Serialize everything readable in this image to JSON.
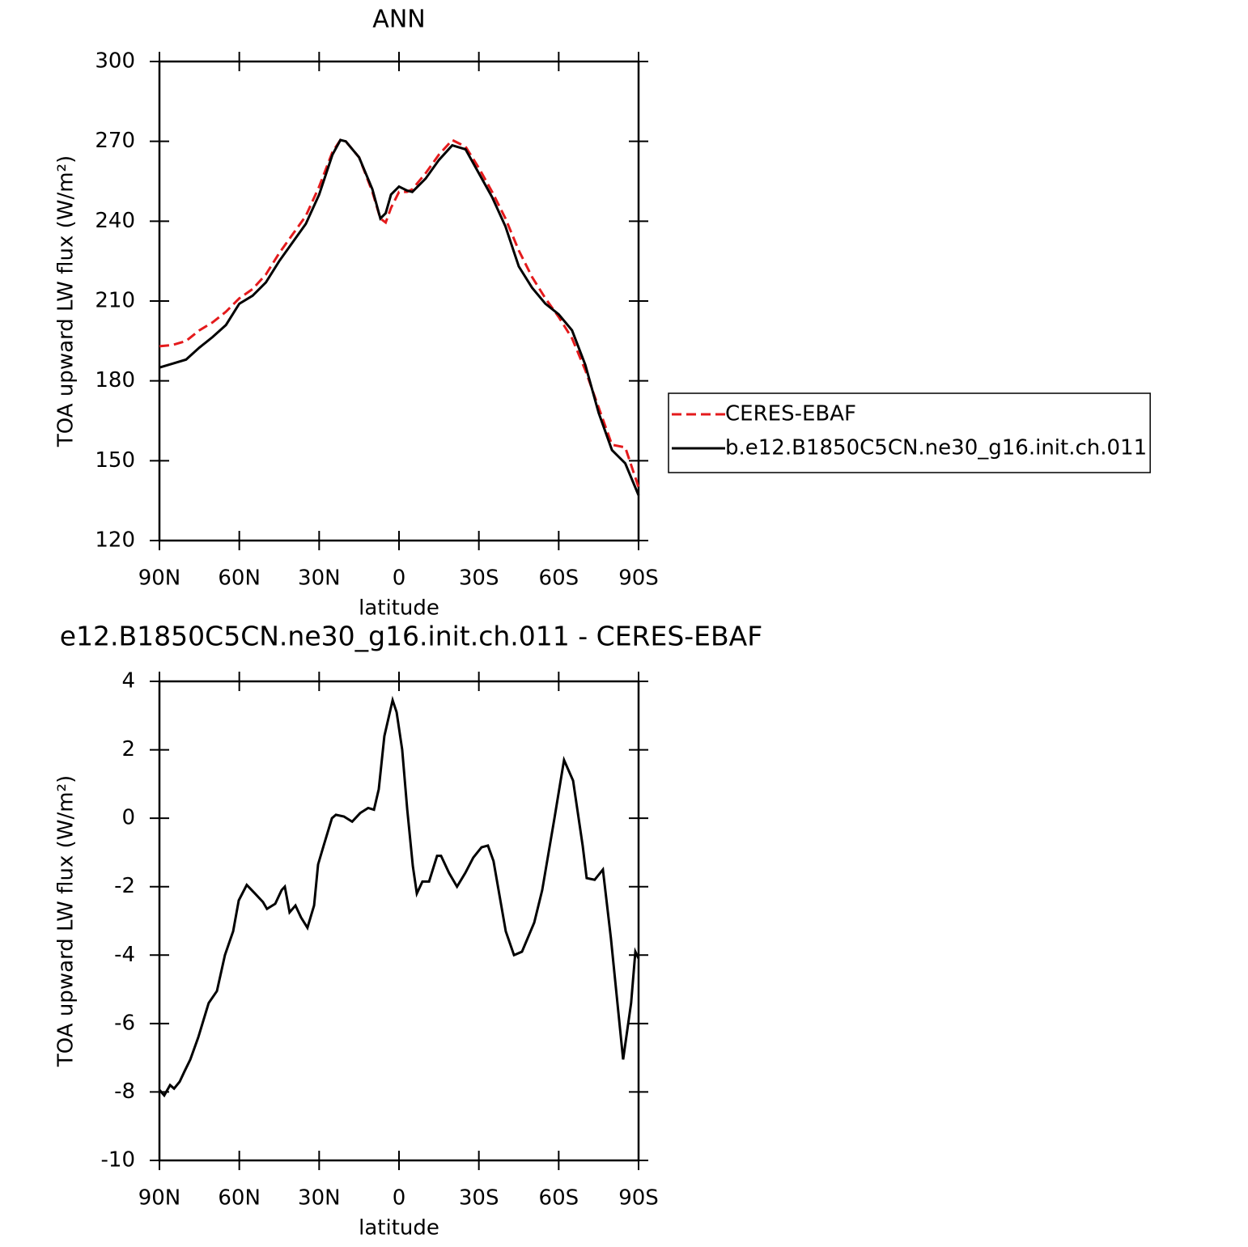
{
  "chart_data": [
    {
      "type": "line",
      "title": "ANN",
      "xlabel": "latitude",
      "ylabel": "TOA upward LW flux (W/m²)",
      "xlim": [
        90,
        -90
      ],
      "xticks": [
        {
          "value": 90,
          "label": "90N"
        },
        {
          "value": 60,
          "label": "60N"
        },
        {
          "value": 30,
          "label": "30N"
        },
        0,
        {
          "value": -30,
          "label": "30S"
        },
        {
          "value": -60,
          "label": "60S"
        },
        {
          "value": -90,
          "label": "90S"
        }
      ],
      "ylim": [
        120,
        300
      ],
      "yticks": [
        120,
        150,
        180,
        210,
        240,
        270,
        300
      ],
      "legend": "right",
      "x": [
        90,
        85,
        80,
        75,
        70,
        65,
        60,
        55,
        50,
        45,
        40,
        35,
        30,
        25,
        22,
        20,
        15,
        10,
        7,
        5,
        3,
        0,
        -3,
        -5,
        -10,
        -15,
        -20,
        -25,
        -30,
        -35,
        -40,
        -45,
        -50,
        -55,
        -60,
        -65,
        -70,
        -75,
        -80,
        -85,
        -90
      ],
      "series": [
        {
          "name": "CERES-EBAF",
          "color": "#e41a1c",
          "style": "dashed",
          "values": [
            193,
            193.5,
            195,
            199,
            202,
            206,
            211,
            214.5,
            220,
            228,
            235,
            242,
            253,
            266,
            270.5,
            270,
            264,
            251,
            241,
            239.5,
            245,
            251,
            251,
            252,
            258,
            265,
            270.5,
            268,
            260,
            251,
            241,
            229,
            219,
            211,
            204,
            196,
            184,
            170,
            156,
            155,
            140
          ]
        },
        {
          "name": "b.e12.B1850C5CN.ne30_g16.init.ch.011",
          "color": "#000000",
          "style": "solid",
          "values": [
            185,
            186.5,
            188,
            192.5,
            196.5,
            201,
            209,
            212,
            217,
            225,
            232,
            239,
            250,
            265,
            270.5,
            270,
            264,
            252,
            241,
            243,
            250,
            253,
            251.5,
            251,
            256,
            263,
            268.5,
            267,
            258,
            249,
            238,
            223,
            215,
            209,
            205,
            199,
            186,
            168,
            154,
            149,
            137
          ]
        }
      ]
    },
    {
      "type": "line",
      "title": "e12.B1850C5CN.ne30_g16.init.ch.011 - CERES-EBAF",
      "xlabel": "latitude",
      "ylabel": "TOA upward LW flux (W/m²)",
      "xlim": [
        90,
        -90
      ],
      "xticks": [
        {
          "value": 90,
          "label": "90N"
        },
        {
          "value": 60,
          "label": "60N"
        },
        {
          "value": 30,
          "label": "30N"
        },
        0,
        {
          "value": -30,
          "label": "30S"
        },
        {
          "value": -60,
          "label": "60S"
        },
        {
          "value": -90,
          "label": "90S"
        }
      ],
      "ylim": [
        -10,
        4
      ],
      "yticks": [
        -10,
        -8,
        -6,
        -4,
        -2,
        0,
        2,
        4
      ],
      "x": [
        90,
        88.2,
        86,
        84.5,
        82.4,
        80.6,
        78.4,
        75.4,
        71.5,
        68.4,
        65.4,
        62.3,
        60.2,
        57.2,
        54.1,
        51.1,
        49.6,
        46.5,
        44.1,
        42.9,
        41.1,
        38.9,
        36.8,
        34.4,
        31.9,
        30.4,
        28.3,
        25.2,
        23.7,
        20.7,
        17.6,
        14.6,
        11.6,
        9.4,
        7.6,
        5.5,
        2.4,
        0.9,
        -1.2,
        -3.1,
        -5.2,
        -6.7,
        -8.8,
        -11.3,
        -14.3,
        -15.8,
        -18.8,
        -21.8,
        -24.9,
        -27.9,
        -31,
        -33.4,
        -35.5,
        -40.1,
        -43.2,
        -46.2,
        -50.8,
        -53.8,
        -58.4,
        -62,
        -65.4,
        -69,
        -70.5,
        -73.5,
        -76.6,
        -79.6,
        -81.8,
        -84.2,
        -87.2,
        -88.8,
        -90
      ],
      "series": [
        {
          "color": "#000000",
          "style": "solid",
          "values": [
            -7.94,
            -8.1,
            -7.8,
            -7.9,
            -7.7,
            -7.4,
            -7.05,
            -6.4,
            -5.4,
            -5.05,
            -4.0,
            -3.3,
            -2.4,
            -1.95,
            -2.2,
            -2.45,
            -2.65,
            -2.5,
            -2.1,
            -2.0,
            -2.75,
            -2.55,
            -2.9,
            -3.2,
            -2.55,
            -1.35,
            -0.8,
            0.0,
            0.1,
            0.05,
            -0.1,
            0.15,
            0.3,
            0.25,
            0.85,
            2.4,
            3.45,
            3.1,
            2.0,
            0.25,
            -1.4,
            -2.2,
            -1.85,
            -1.85,
            -1.1,
            -1.1,
            -1.6,
            -2.0,
            -1.6,
            -1.15,
            -0.85,
            -0.8,
            -1.25,
            -3.3,
            -4.0,
            -3.9,
            -3.05,
            -2.1,
            0.0,
            1.7,
            1.1,
            -0.8,
            -1.75,
            -1.8,
            -1.5,
            -3.5,
            -5.2,
            -7.05,
            -5.4,
            -3.9,
            -4.1
          ]
        }
      ]
    }
  ]
}
